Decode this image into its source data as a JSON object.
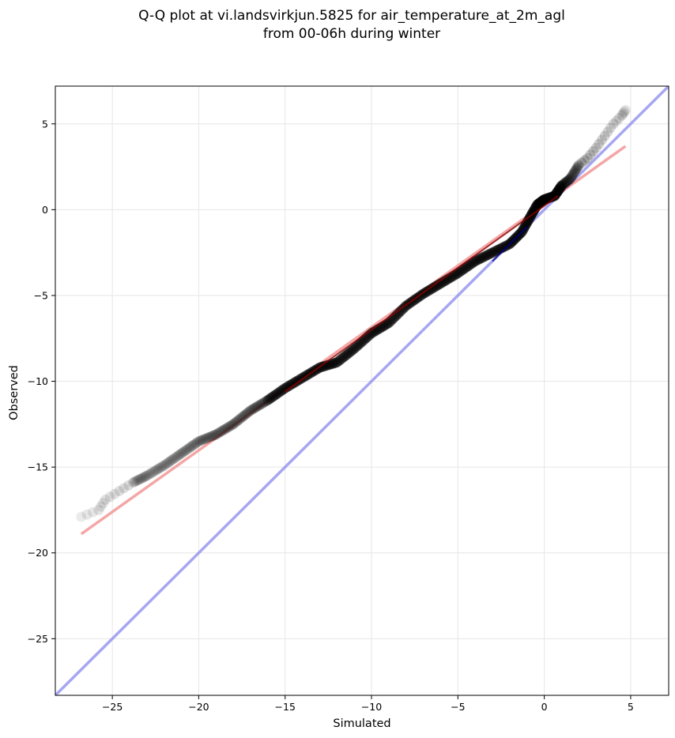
{
  "chart_data": {
    "type": "scatter",
    "title_line1": "Q-Q plot at vi.landsvirkjun.5825 for air_temperature_at_2m_agl",
    "title_line2": "from 00-06h during winter",
    "xlabel": "Simulated",
    "ylabel": "Observed",
    "xlim": [
      -28.3,
      7.2
    ],
    "ylim": [
      -28.3,
      7.2
    ],
    "xticks": [
      -25,
      -20,
      -15,
      -10,
      -5,
      0,
      5
    ],
    "yticks": [
      -25,
      -20,
      -15,
      -10,
      -5,
      0,
      5
    ],
    "xtick_labels": [
      "−25",
      "−20",
      "−15",
      "−10",
      "−5",
      "0",
      "5"
    ],
    "ytick_labels": [
      "−25",
      "−20",
      "−15",
      "−10",
      "−5",
      "0",
      "5"
    ],
    "grid": true,
    "colors": {
      "points": "#000000",
      "fit_line": "#f08080",
      "identity_line": "#8888ee",
      "central_fit": "#8b0000",
      "central_identity": "#00008b"
    },
    "quantile_knots": [
      [
        -26.8,
        -17.9
      ],
      [
        -25.8,
        -17.5
      ],
      [
        -25.4,
        -16.9
      ],
      [
        -24.6,
        -16.4
      ],
      [
        -23.8,
        -15.9
      ],
      [
        -23.0,
        -15.5
      ],
      [
        -22.0,
        -14.9
      ],
      [
        -21.0,
        -14.2
      ],
      [
        -20.0,
        -13.5
      ],
      [
        -19.0,
        -13.1
      ],
      [
        -18.0,
        -12.5
      ],
      [
        -17.0,
        -11.7
      ],
      [
        -16.0,
        -11.1
      ],
      [
        -15.0,
        -10.4
      ],
      [
        -14.0,
        -9.8
      ],
      [
        -13.0,
        -9.2
      ],
      [
        -12.0,
        -8.9
      ],
      [
        -11.0,
        -8.1
      ],
      [
        -10.0,
        -7.2
      ],
      [
        -9.0,
        -6.6
      ],
      [
        -8.0,
        -5.6
      ],
      [
        -7.0,
        -4.9
      ],
      [
        -6.0,
        -4.3
      ],
      [
        -5.0,
        -3.7
      ],
      [
        -4.0,
        -3.0
      ],
      [
        -3.0,
        -2.5
      ],
      [
        -2.0,
        -2.0
      ],
      [
        -1.3,
        -1.3
      ],
      [
        -0.8,
        -0.4
      ],
      [
        -0.4,
        0.3
      ],
      [
        0.0,
        0.6
      ],
      [
        0.6,
        0.8
      ],
      [
        1.0,
        1.4
      ],
      [
        1.5,
        1.8
      ],
      [
        2.0,
        2.6
      ],
      [
        2.5,
        3.0
      ],
      [
        3.0,
        3.6
      ],
      [
        3.5,
        4.3
      ],
      [
        4.0,
        5.0
      ],
      [
        4.5,
        5.5
      ],
      [
        4.7,
        5.8
      ]
    ],
    "fit_line": {
      "x": [
        -26.8,
        4.7
      ],
      "y": [
        -18.9,
        3.7
      ]
    },
    "identity_line": {
      "x": [
        -28.3,
        7.2
      ],
      "y": [
        -28.3,
        7.2
      ]
    },
    "central_fit": {
      "x": [
        -15.0,
        0.8
      ],
      "y": [
        -10.6,
        0.8
      ]
    },
    "central_identity": {
      "x": [
        -3.0,
        -1.0
      ],
      "y": [
        -3.0,
        -1.0
      ]
    }
  }
}
